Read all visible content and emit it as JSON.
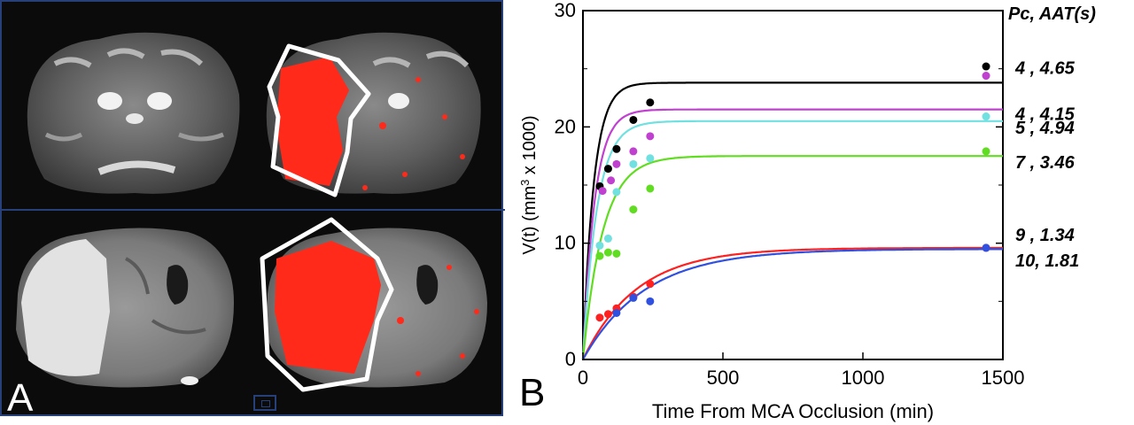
{
  "panel_labels": {
    "a": "A",
    "b": "B"
  },
  "images": {
    "top_left": "brain-slice-perfusion-grayscale",
    "top_right": "brain-slice-perfusion-lesion-overlay",
    "bottom_left": "brain-slice-t2-grayscale",
    "bottom_right": "brain-slice-t2-lesion-overlay"
  },
  "colors": {
    "overlay_red": "#ff2a1a",
    "outline": "#ffffff",
    "frame": "#27407a"
  },
  "chart_data": {
    "type": "line",
    "title": "",
    "xlabel": "Time From MCA Occlusion (min)",
    "ylabel_parts": [
      "V(t) (mm",
      "3",
      " x 1000)"
    ],
    "legend_header": "Pc, AAT(s)",
    "xlim": [
      0,
      1500
    ],
    "ylim": [
      0,
      30
    ],
    "xticks": [
      0,
      500,
      1000,
      1500
    ],
    "yticks": [
      0,
      10,
      20,
      30
    ],
    "grid": false,
    "series": [
      {
        "name": "4 , 4.65",
        "color": "#000000",
        "plateau": 23.8,
        "rate": 0.026,
        "points": [
          [
            60,
            14.9
          ],
          [
            90,
            16.4
          ],
          [
            120,
            18.1
          ],
          [
            180,
            20.6
          ],
          [
            240,
            22.1
          ],
          [
            1440,
            25.2
          ]
        ]
      },
      {
        "name": "4 , 4.15",
        "color": "#c040d0",
        "plateau": 21.5,
        "rate": 0.024,
        "points": [
          [
            70,
            14.5
          ],
          [
            100,
            15.4
          ],
          [
            120,
            16.8
          ],
          [
            180,
            17.9
          ],
          [
            240,
            19.2
          ],
          [
            1440,
            24.4
          ]
        ]
      },
      {
        "name": "5 , 4.94",
        "color": "#70e0e0",
        "plateau": 20.5,
        "rate": 0.02,
        "points": [
          [
            60,
            9.8
          ],
          [
            90,
            10.4
          ],
          [
            120,
            14.4
          ],
          [
            180,
            16.8
          ],
          [
            240,
            17.3
          ],
          [
            1440,
            20.9
          ]
        ]
      },
      {
        "name": "7 , 3.46",
        "color": "#60dd20",
        "plateau": 17.5,
        "rate": 0.014,
        "points": [
          [
            60,
            8.9
          ],
          [
            90,
            9.2
          ],
          [
            120,
            9.1
          ],
          [
            180,
            12.9
          ],
          [
            240,
            14.7
          ],
          [
            1440,
            17.9
          ]
        ]
      },
      {
        "name": "9 , 1.34",
        "color": "#ff2020",
        "plateau": 9.6,
        "rate": 0.0052,
        "points": [
          [
            60,
            3.6
          ],
          [
            90,
            3.9
          ],
          [
            120,
            4.4
          ],
          [
            180,
            5.4
          ],
          [
            240,
            6.5
          ],
          [
            1440,
            9.6
          ]
        ]
      },
      {
        "name": "10, 1.81",
        "color": "#3050e0",
        "plateau": 9.5,
        "rate": 0.0045,
        "points": [
          [
            120,
            4.0
          ],
          [
            180,
            5.3
          ],
          [
            240,
            5.0
          ],
          [
            1440,
            9.6
          ]
        ]
      }
    ]
  }
}
